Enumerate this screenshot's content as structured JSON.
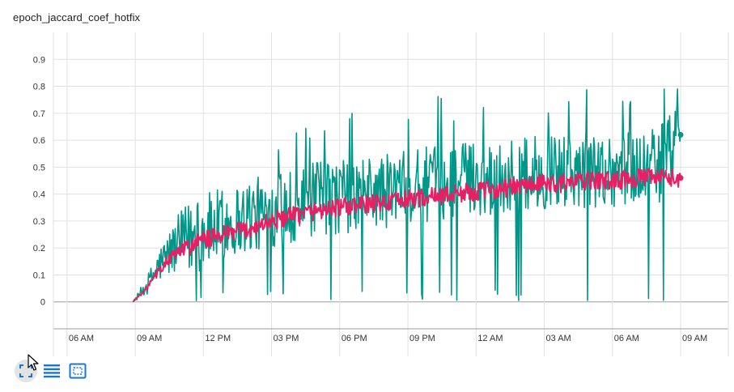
{
  "card": {
    "title": "epoch_jaccard_coef_hotfix"
  },
  "toolbar": {
    "buttons": [
      {
        "name": "fit-domain",
        "icon": "fit-domain-icon"
      },
      {
        "name": "toggle-log-scale",
        "icon": "list-lines-icon"
      },
      {
        "name": "toggle-selection",
        "icon": "dashed-box-icon"
      }
    ],
    "accent": "#1976d2"
  },
  "chart_data": {
    "type": "line",
    "title": "epoch_jaccard_coef_hotfix",
    "xlabel": "",
    "ylabel": "",
    "grid": true,
    "legend": "none",
    "x_ticks": [
      "06 AM",
      "09 AM",
      "12 PM",
      "03 PM",
      "06 PM",
      "09 PM",
      "12 AM",
      "03 AM",
      "06 AM",
      "09 AM"
    ],
    "x_range_hours": [
      -3.6,
      26.1
    ],
    "y_ticks": [
      0,
      0.1,
      0.2,
      0.3,
      0.4,
      0.5,
      0.6,
      0.7,
      0.8,
      0.9
    ],
    "ylim": [
      -0.1,
      1.0
    ],
    "series": [
      {
        "color": "#009688",
        "start_hour": -0.1,
        "end_hour": 24.0,
        "last_value": 0.62,
        "anchor_hours": [
          -0.1,
          0.5,
          1.0,
          1.5,
          2.0,
          3.0,
          4.0,
          5.0,
          6.0,
          7.0,
          8.0,
          9.0,
          10.0,
          11.0,
          12.0,
          13.0,
          14.0,
          15.0,
          16.0,
          17.0,
          18.0,
          19.0,
          20.0,
          21.0,
          22.0,
          23.0,
          24.0
        ],
        "anchor_values": [
          0.0,
          0.06,
          0.13,
          0.18,
          0.22,
          0.26,
          0.29,
          0.32,
          0.33,
          0.36,
          0.38,
          0.39,
          0.4,
          0.41,
          0.42,
          0.44,
          0.45,
          0.46,
          0.46,
          0.47,
          0.48,
          0.48,
          0.49,
          0.49,
          0.5,
          0.5,
          0.62
        ],
        "noise_amplitude": 0.14,
        "spike_peak": 0.79,
        "dip_min": 0.0
      },
      {
        "color": "#e91e63",
        "start_hour": -0.1,
        "end_hour": 24.0,
        "last_value": 0.46,
        "anchor_hours": [
          -0.1,
          0.5,
          1.0,
          1.5,
          2.0,
          3.0,
          4.0,
          5.0,
          6.0,
          7.0,
          8.0,
          9.0,
          10.0,
          11.0,
          12.0,
          13.0,
          14.0,
          15.0,
          16.0,
          17.0,
          18.0,
          19.0,
          20.0,
          21.0,
          22.0,
          23.0,
          24.0
        ],
        "anchor_values": [
          0.0,
          0.05,
          0.11,
          0.16,
          0.19,
          0.23,
          0.25,
          0.27,
          0.3,
          0.32,
          0.34,
          0.35,
          0.36,
          0.37,
          0.38,
          0.39,
          0.4,
          0.41,
          0.42,
          0.43,
          0.44,
          0.44,
          0.45,
          0.45,
          0.46,
          0.46,
          0.46
        ],
        "noise_amplitude": 0.035
      }
    ]
  }
}
